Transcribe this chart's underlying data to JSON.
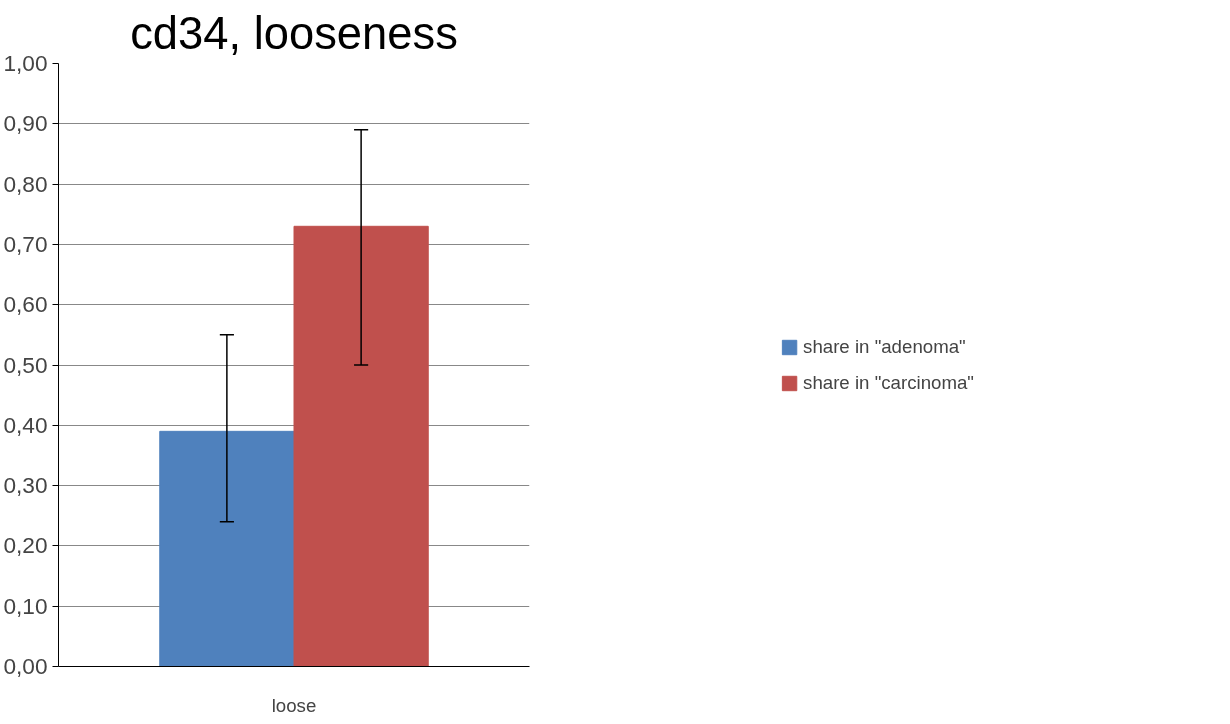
{
  "chart_data": {
    "type": "bar",
    "title": "cd34, looseness",
    "categories": [
      "loose"
    ],
    "series": [
      {
        "name": "share in \"adenoma\"",
        "color": "#4f81bd",
        "values": [
          0.39
        ],
        "errors": [
          [
            0.24,
            0.55
          ]
        ]
      },
      {
        "name": "share in \"carcinoma\"",
        "color": "#c0504d",
        "values": [
          0.73
        ],
        "errors": [
          [
            0.5,
            0.89
          ]
        ]
      }
    ],
    "ylim": [
      0,
      1
    ],
    "yticks": [
      {
        "value": 0,
        "label": "0,00"
      },
      {
        "value": 0.1,
        "label": "0,10"
      },
      {
        "value": 0.2,
        "label": "0,20"
      },
      {
        "value": 0.3,
        "label": "0,30"
      },
      {
        "value": 0.4,
        "label": "0,40"
      },
      {
        "value": 0.5,
        "label": "0,50"
      },
      {
        "value": 0.6,
        "label": "0,60"
      },
      {
        "value": 0.7,
        "label": "0,70"
      },
      {
        "value": 0.8,
        "label": "0,80"
      },
      {
        "value": 0.9,
        "label": "0,90"
      },
      {
        "value": 1,
        "label": "1,00"
      }
    ],
    "grid": "y",
    "legend": "right"
  }
}
